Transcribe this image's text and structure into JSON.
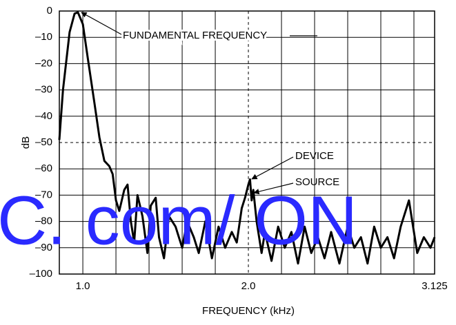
{
  "chart_data": {
    "type": "line",
    "xlabel": "FREQUENCY (kHz)",
    "ylabel": "dB",
    "xlim": [
      0.858,
      3.125
    ],
    "ylim": [
      -100,
      0
    ],
    "xticks": [
      {
        "value": 1,
        "label": "1.0"
      },
      {
        "value": 2,
        "label": "2.0"
      },
      3.125
    ],
    "x_minor_grid": [
      1.2,
      1.4,
      1.6,
      1.8,
      2.2,
      2.4,
      2.6,
      2.8,
      3.0
    ],
    "yticks": [
      0,
      {
        "value": -10,
        "label": "–10"
      },
      {
        "value": -20,
        "label": "–20"
      },
      {
        "value": -30,
        "label": "–30"
      },
      {
        "value": -40,
        "label": "–40"
      },
      {
        "value": -50,
        "label": "–50"
      },
      {
        "value": -60,
        "label": "–60"
      },
      {
        "value": -70,
        "label": "–70"
      },
      {
        "value": -80,
        "label": "–80"
      },
      {
        "value": -90,
        "label": "–90"
      },
      {
        "value": -100,
        "label": "–100"
      }
    ],
    "grid": true,
    "dashed_hlines": [
      -50
    ],
    "dashed_vlines": [
      2.0
    ],
    "annotations": [
      "FUNDAMENTAL FREQUENCY",
      "DEVICE",
      "SOURCE"
    ],
    "watermark": "C. com/ ON",
    "series": [
      {
        "color": "#000000",
        "x": [
          0.858,
          0.88,
          0.92,
          0.95,
          0.97,
          1.0,
          1.03,
          1.07,
          1.1,
          1.13,
          1.16,
          1.18,
          1.2,
          1.22,
          1.25,
          1.27,
          1.29,
          1.31,
          1.33,
          1.36,
          1.39,
          1.41,
          1.44,
          1.46,
          1.49,
          1.52,
          1.56,
          1.6,
          1.63,
          1.67,
          1.7,
          1.74,
          1.78,
          1.82,
          1.86,
          1.9,
          1.93,
          1.96,
          1.98,
          2.0,
          2.01,
          2.02,
          2.03,
          2.05,
          2.08,
          2.1,
          2.14,
          2.18,
          2.22,
          2.26,
          2.3,
          2.34,
          2.38,
          2.42,
          2.46,
          2.5,
          2.55,
          2.6,
          2.64,
          2.68,
          2.72,
          2.76,
          2.8,
          2.84,
          2.88,
          2.92,
          2.95,
          2.97,
          2.99,
          3.02,
          3.06,
          3.1,
          3.125
        ],
        "values": [
          -49,
          -30,
          -8,
          -1,
          -0.5,
          -5,
          -18,
          -35,
          -48,
          -57,
          -59,
          -62,
          -72,
          -76,
          -68,
          -66,
          -80,
          -88,
          -70,
          -78,
          -92,
          -74,
          -71,
          -86,
          -94,
          -78,
          -82,
          -90,
          -80,
          -86,
          -92,
          -80,
          -94,
          -82,
          -90,
          -84,
          -88,
          -75,
          -71,
          -66,
          -64,
          -72,
          -68,
          -80,
          -92,
          -84,
          -95,
          -82,
          -90,
          -84,
          -96,
          -82,
          -92,
          -86,
          -94,
          -84,
          -96,
          -82,
          -90,
          -86,
          -96,
          -82,
          -90,
          -86,
          -94,
          -82,
          -76,
          -72,
          -80,
          -92,
          -86,
          -90,
          -86
        ]
      }
    ]
  }
}
